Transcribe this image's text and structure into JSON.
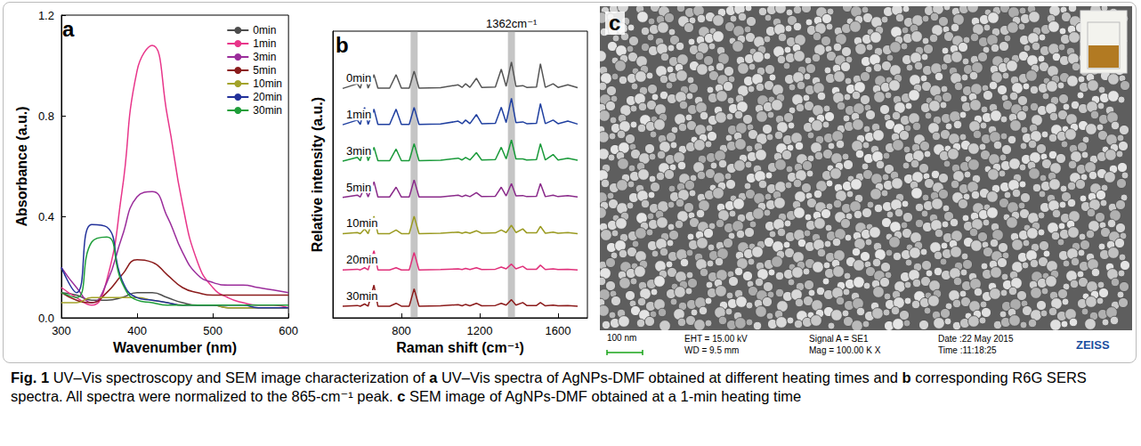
{
  "chart_data": [
    {
      "panel": "a",
      "type": "line",
      "x": [
        300,
        320,
        340,
        360,
        380,
        400,
        420,
        440,
        460,
        480,
        500,
        520,
        540,
        560,
        580,
        600
      ],
      "series": [
        {
          "name": "0min",
          "color": "#4d4d4d",
          "values": [
            0.1,
            0.09,
            0.07,
            0.07,
            0.08,
            0.1,
            0.1,
            0.08,
            0.06,
            0.05,
            0.05,
            0.04,
            0.04,
            0.04,
            0.04,
            0.04
          ]
        },
        {
          "name": "1min",
          "color": "#e8358a",
          "values": [
            0.12,
            0.08,
            0.05,
            0.15,
            0.5,
            0.98,
            1.08,
            0.8,
            0.45,
            0.22,
            0.12,
            0.08,
            0.06,
            0.05,
            0.05,
            0.04
          ]
        },
        {
          "name": "3min",
          "color": "#9b2d9b",
          "values": [
            0.2,
            0.12,
            0.06,
            0.14,
            0.32,
            0.48,
            0.5,
            0.4,
            0.26,
            0.17,
            0.14,
            0.13,
            0.13,
            0.12,
            0.11,
            0.1
          ]
        },
        {
          "name": "5min",
          "color": "#8b1c1c",
          "values": [
            0.1,
            0.07,
            0.06,
            0.1,
            0.17,
            0.23,
            0.22,
            0.17,
            0.12,
            0.1,
            0.09,
            0.09,
            0.09,
            0.09,
            0.09,
            0.09
          ]
        },
        {
          "name": "10min",
          "color": "#a3a32a",
          "values": [
            0.06,
            0.06,
            0.08,
            0.08,
            0.08,
            0.08,
            0.07,
            0.06,
            0.05,
            0.05,
            0.05,
            0.04,
            0.04,
            0.04,
            0.04,
            0.04
          ]
        },
        {
          "name": "20min",
          "color": "#22319a",
          "values": [
            0.2,
            0.1,
            0.37,
            0.36,
            0.15,
            0.08,
            0.07,
            0.06,
            0.05,
            0.05,
            0.05,
            0.05,
            0.05,
            0.04,
            0.04,
            0.04
          ]
        },
        {
          "name": "30min",
          "color": "#1f9e3a",
          "values": [
            0.1,
            0.08,
            0.3,
            0.32,
            0.14,
            0.07,
            0.06,
            0.05,
            0.05,
            0.05,
            0.05,
            0.05,
            0.05,
            0.05,
            0.05,
            0.05
          ]
        }
      ],
      "xlabel": "Wavenumber (nm)",
      "ylabel": "Absorbance (a.u.)",
      "xlim": [
        300,
        600
      ],
      "xticks": [
        300,
        400,
        500,
        600
      ],
      "ylim": [
        0,
        1.2
      ],
      "yticks": [
        {
          "value": 0,
          "label": "0.0"
        },
        0.4,
        0.8,
        1.2
      ],
      "legend": "upper right",
      "grid": false
    },
    {
      "panel": "b",
      "type": "line",
      "x": [
        500,
        575,
        590,
        612,
        630,
        660,
        680,
        740,
        773,
        800,
        840,
        865,
        890,
        1000,
        1090,
        1110,
        1128,
        1150,
        1183,
        1210,
        1280,
        1310,
        1335,
        1362,
        1385,
        1420,
        1440,
        1490,
        1510,
        1535,
        1575,
        1600,
        1650,
        1700
      ],
      "series": [
        {
          "name": "0min",
          "color": "#555555",
          "values": [
            6.02,
            6.15,
            6.03,
            6.45,
            6.03,
            6.4,
            6.03,
            6.03,
            6.4,
            6.03,
            6.03,
            6.5,
            6.03,
            6.04,
            6.12,
            6.05,
            6.15,
            6.05,
            6.3,
            6.05,
            6.06,
            6.55,
            6.08,
            6.75,
            6.08,
            6.1,
            6.05,
            6.06,
            6.7,
            6.05,
            6.15,
            6.05,
            6.12,
            6.04
          ]
        },
        {
          "name": "1min",
          "color": "#2040a0",
          "values": [
            5.02,
            5.15,
            5.03,
            5.5,
            5.03,
            5.45,
            5.03,
            5.03,
            5.45,
            5.03,
            5.03,
            5.5,
            5.03,
            5.04,
            5.12,
            5.05,
            5.15,
            5.05,
            5.3,
            5.05,
            5.06,
            5.5,
            5.08,
            5.75,
            5.08,
            5.1,
            5.05,
            5.06,
            5.6,
            5.05,
            5.15,
            5.05,
            5.12,
            5.04
          ]
        },
        {
          "name": "3min",
          "color": "#1a9a3a",
          "values": [
            4.02,
            4.12,
            4.03,
            4.45,
            4.03,
            4.4,
            4.03,
            4.03,
            4.35,
            4.03,
            4.03,
            4.5,
            4.03,
            4.04,
            4.1,
            4.05,
            4.12,
            4.05,
            4.25,
            4.05,
            4.06,
            4.4,
            4.08,
            4.6,
            4.08,
            4.08,
            4.05,
            4.06,
            4.5,
            4.05,
            4.2,
            4.05,
            4.1,
            4.04
          ]
        },
        {
          "name": "5min",
          "color": "#8a2a8a",
          "values": [
            3.02,
            3.08,
            3.03,
            3.3,
            3.03,
            3.45,
            3.03,
            3.03,
            3.3,
            3.03,
            3.03,
            3.5,
            3.03,
            3.03,
            3.08,
            3.04,
            3.08,
            3.04,
            3.15,
            3.04,
            3.05,
            3.3,
            3.06,
            3.4,
            3.06,
            3.07,
            3.04,
            3.05,
            3.4,
            3.04,
            3.08,
            3.04,
            3.07,
            3.03
          ]
        },
        {
          "name": "10min",
          "color": "#9a9a20",
          "values": [
            2.02,
            2.05,
            2.02,
            2.15,
            2.02,
            2.5,
            2.02,
            2.02,
            2.12,
            2.02,
            2.02,
            2.5,
            2.02,
            2.03,
            2.06,
            2.03,
            2.06,
            2.03,
            2.1,
            2.03,
            2.04,
            2.12,
            2.05,
            2.25,
            2.05,
            2.15,
            2.04,
            2.04,
            2.22,
            2.03,
            2.06,
            2.03,
            2.05,
            2.02
          ]
        },
        {
          "name": "20min",
          "color": "#e0307a",
          "values": [
            1.02,
            1.04,
            1.02,
            1.08,
            1.02,
            1.55,
            1.02,
            1.02,
            1.08,
            1.02,
            1.02,
            1.5,
            1.02,
            1.03,
            1.05,
            1.03,
            1.06,
            1.03,
            1.08,
            1.03,
            1.04,
            1.1,
            1.05,
            1.18,
            1.05,
            1.12,
            1.04,
            1.04,
            1.15,
            1.03,
            1.05,
            1.03,
            1.04,
            1.02
          ]
        },
        {
          "name": "30min",
          "color": "#8b1a1a",
          "values": [
            0.02,
            0.04,
            0.02,
            0.08,
            0.02,
            0.6,
            0.02,
            0.02,
            0.1,
            0.02,
            0.02,
            0.5,
            0.02,
            0.03,
            0.06,
            0.03,
            0.07,
            0.03,
            0.1,
            0.03,
            0.04,
            0.1,
            0.05,
            0.2,
            0.05,
            0.12,
            0.04,
            0.04,
            0.12,
            0.03,
            0.05,
            0.03,
            0.04,
            0.02
          ]
        }
      ],
      "xlabel": "Raman shift (cm⁻¹)",
      "ylabel": "Relative intensity (a.u.)",
      "xlim": [
        450,
        1750
      ],
      "xticks": [
        800,
        1200,
        1600
      ],
      "ylim": [
        -0.3,
        7.6
      ],
      "tick_labels": "x",
      "grid": false,
      "highlight_bands": [
        865,
        1362
      ],
      "annotations": [
        {
          "text": "1362cm⁻¹",
          "x": 1362
        }
      ]
    }
  ],
  "image_panel": {
    "panel": "c",
    "scale_bar": "100 nm",
    "info": [
      [
        "EHT = 15.00 kV",
        "WD = 9.5 mm"
      ],
      [
        "Signal A = SE1",
        "Mag = 100.00 K X"
      ],
      [
        "Date :22 May 2015",
        "Time :11:18:25"
      ]
    ],
    "brand": "ZEISS"
  },
  "caption": [
    {
      "text": "Fig. 1",
      "bold": true
    },
    {
      "text": " UV–Vis spectroscopy and SEM image characterization of "
    },
    {
      "text": "a",
      "bold": true
    },
    {
      "text": " UV–Vis spectra of AgNPs-DMF obtained at different heating times and "
    },
    {
      "text": "b",
      "bold": true
    },
    {
      "text": " corresponding R6G SERS spectra. All spectra were normalized to the 865-cm⁻¹ peak. "
    },
    {
      "text": "c",
      "bold": true
    },
    {
      "text": " SEM image of AgNPs-DMF obtained at a 1-min heating time"
    }
  ]
}
